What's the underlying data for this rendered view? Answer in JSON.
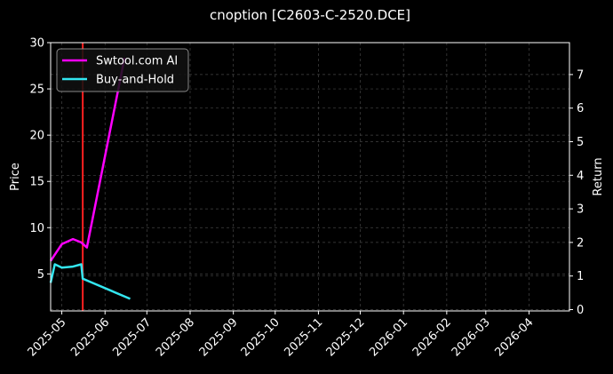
{
  "chart_data": {
    "type": "line",
    "title": "cnoption [C2603-C-2520.DCE]",
    "ylabel": "Price",
    "y2label": "Return",
    "xlim": [
      "2025-04-23",
      "2026-04-30"
    ],
    "ylim": [
      1,
      30
    ],
    "y2lim": [
      -0.04,
      7.95
    ],
    "x_ticks": [
      "2025-05-01",
      "2025-06-01",
      "2025-07-01",
      "2025-08-01",
      "2025-09-01",
      "2025-10-01",
      "2025-11-01",
      "2025-12-01",
      "2026-01-01",
      "2026-02-01",
      "2026-03-01",
      "2026-04-01"
    ],
    "x_tick_labels": [
      "2025-05",
      "2025-06",
      "2025-07",
      "2025-08",
      "2025-09",
      "2025-10",
      "2025-11",
      "2025-12",
      "2026-01",
      "2026-02",
      "2026-03",
      "2026-04"
    ],
    "y_ticks": [
      5,
      10,
      15,
      20,
      25,
      30
    ],
    "y2_ticks": [
      0,
      1,
      2,
      3,
      4,
      5,
      6,
      7
    ],
    "grid": true,
    "legend_position": "top-left",
    "series": [
      {
        "name": "Swtool.com AI",
        "color": "#ff00ff",
        "axis": "y2",
        "x": [
          "2025-04-23",
          "2025-05-01",
          "2025-05-09",
          "2025-05-15",
          "2025-05-19",
          "2025-06-15"
        ],
        "values": [
          1.45,
          1.95,
          2.1,
          2.0,
          1.85,
          7.5
        ]
      },
      {
        "name": "Buy-and-Hold",
        "color": "#33e6f0",
        "axis": "y2",
        "x": [
          "2025-04-23",
          "2025-04-26",
          "2025-05-01",
          "2025-05-09",
          "2025-05-15",
          "2025-05-16",
          "2025-05-20",
          "2025-06-19"
        ],
        "values": [
          0.8,
          1.35,
          1.25,
          1.28,
          1.35,
          0.92,
          0.85,
          0.32
        ]
      }
    ],
    "vertical_line": {
      "x": "2025-05-16",
      "color": "#ff2020"
    }
  }
}
